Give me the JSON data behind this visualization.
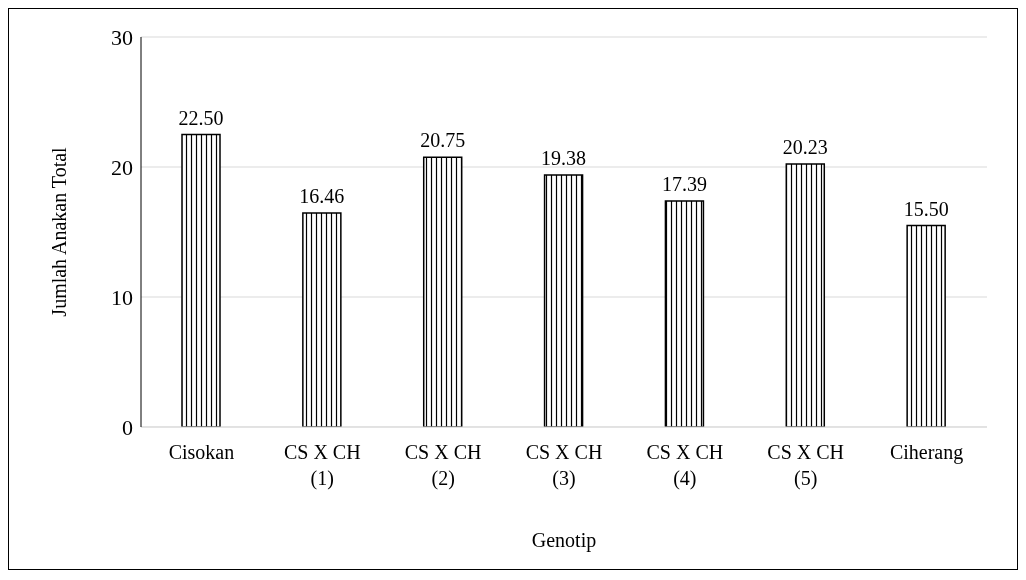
{
  "chart_data": {
    "type": "bar",
    "xlabel": "Genotip",
    "ylabel": "Jumlah Anakan Total",
    "categories": [
      "Cisokan",
      "CS X CH (1)",
      "CS X CH (2)",
      "CS X CH (3)",
      "CS X CH (4)",
      "CS X CH (5)",
      "Ciherang"
    ],
    "values": [
      22.5,
      16.46,
      20.75,
      19.38,
      17.39,
      20.23,
      15.5
    ],
    "value_labels": [
      "22.50",
      "16.46",
      "20.75",
      "19.38",
      "17.39",
      "20.23",
      "15.50"
    ],
    "color": "#000000",
    "ylim": [
      0,
      30
    ],
    "yticks": [
      0,
      10,
      20,
      30
    ],
    "grid": "y",
    "legend": false
  }
}
